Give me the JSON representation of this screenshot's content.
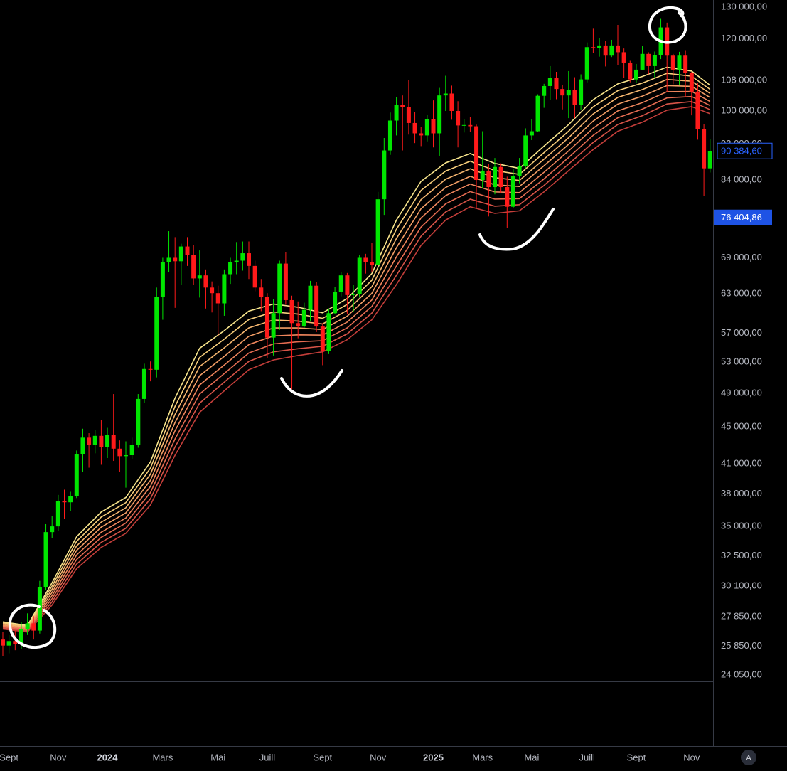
{
  "chart_data": {
    "type": "candlestick",
    "categories": [
      null,
      "Sept",
      null,
      null,
      null,
      null,
      null,
      null,
      null,
      "Nov",
      null,
      null,
      null,
      null,
      null,
      null,
      null,
      "2024",
      null,
      null,
      null,
      null,
      null,
      null,
      null,
      null,
      "Mars",
      null,
      null,
      null,
      null,
      null,
      null,
      null,
      null,
      "Mai",
      null,
      null,
      null,
      null,
      null,
      null,
      null,
      "Juill",
      null,
      null,
      null,
      null,
      null,
      null,
      null,
      null,
      "Sept",
      null,
      null,
      null,
      null,
      null,
      null,
      null,
      null,
      "Nov",
      null,
      null,
      null,
      null,
      null,
      null,
      null,
      null,
      "2025",
      null,
      null,
      null,
      null,
      null,
      null,
      null,
      "Mars",
      null,
      null,
      null,
      null,
      null,
      null,
      null,
      "Mai",
      null,
      null,
      null,
      null,
      null,
      null,
      null,
      null,
      "Juill",
      null,
      null,
      null,
      null,
      null,
      null,
      null,
      "Sept",
      null,
      null,
      null,
      null,
      null,
      null,
      null,
      null,
      "Nov",
      null,
      null,
      null
    ],
    "open": [
      26300,
      25900,
      26200,
      26000,
      27000,
      27400,
      26900,
      30000,
      34500,
      35000,
      37300,
      37200,
      37800,
      42000,
      43800,
      43000,
      44000,
      42800,
      44100,
      42600,
      41800,
      41900,
      43000,
      48300,
      52100,
      52000,
      62500,
      68300,
      69000,
      68400,
      71000,
      69500,
      65500,
      66000,
      64000,
      63100,
      61500,
      66200,
      68200,
      68500,
      69800,
      67600,
      64000,
      62500,
      56400,
      60000,
      68000,
      62000,
      58500,
      58000,
      60500,
      64300,
      58000,
      54500,
      60000,
      63300,
      66000,
      62800,
      63000,
      69000,
      68300,
      67800,
      80000,
      90500,
      97600,
      101500,
      101000,
      97000,
      94500,
      94000,
      98000,
      94500,
      104000,
      104500,
      100000,
      96400,
      96500,
      96200,
      84000,
      86000,
      82500,
      86800,
      82500,
      78500,
      84900,
      87000,
      94000,
      95000,
      103900,
      106500,
      108700,
      105700,
      104000,
      105500,
      101500,
      108300,
      117500,
      117300,
      118000,
      115000,
      118000,
      116000,
      113000,
      108300,
      111000,
      115500,
      112000,
      115200,
      123500,
      115000,
      111000,
      115000,
      110000,
      105000,
      95500,
      86500
    ],
    "high": [
      26800,
      26600,
      26900,
      27500,
      28100,
      27900,
      30500,
      35200,
      35900,
      37900,
      38400,
      38200,
      42400,
      44800,
      44300,
      44700,
      45800,
      44900,
      48900,
      43500,
      43400,
      43800,
      48900,
      52800,
      53100,
      64000,
      69000,
      73800,
      72700,
      71500,
      72700,
      71300,
      70300,
      67000,
      65000,
      64300,
      67000,
      69000,
      71800,
      71900,
      71900,
      68500,
      65400,
      63100,
      62200,
      68500,
      70000,
      62700,
      61800,
      61600,
      65100,
      64900,
      58500,
      60700,
      64100,
      66500,
      66400,
      64400,
      69500,
      69700,
      71600,
      81500,
      93400,
      99600,
      103600,
      104000,
      108200,
      99800,
      96100,
      99000,
      102700,
      106000,
      109300,
      106600,
      102500,
      98000,
      98500,
      96600,
      95000,
      87500,
      88800,
      87600,
      84700,
      86400,
      88800,
      95700,
      97900,
      104300,
      107100,
      112000,
      110400,
      106800,
      110600,
      108900,
      109700,
      118900,
      123100,
      120200,
      119300,
      119700,
      124300,
      117100,
      113500,
      112600,
      117900,
      116000,
      116200,
      126200,
      125000,
      115500,
      116100,
      116400,
      110400,
      107400,
      96800,
      93100
    ],
    "low": [
      25200,
      25400,
      25600,
      25700,
      26600,
      26300,
      26700,
      29800,
      34000,
      34600,
      35700,
      36400,
      37600,
      40200,
      40600,
      42100,
      40900,
      41600,
      41300,
      40200,
      38600,
      41500,
      42700,
      47800,
      50500,
      51000,
      59000,
      66600,
      60800,
      64500,
      67600,
      64500,
      62400,
      60700,
      60100,
      56600,
      59600,
      64600,
      66200,
      66800,
      65400,
      63400,
      60300,
      53500,
      53900,
      57500,
      61300,
      49500,
      56300,
      57800,
      58800,
      57200,
      52600,
      54100,
      59800,
      62600,
      59900,
      60200,
      62400,
      66300,
      66600,
      66800,
      76900,
      89500,
      94000,
      90500,
      94200,
      92200,
      91500,
      92600,
      91200,
      89300,
      100000,
      97800,
      91200,
      94700,
      94900,
      78200,
      82300,
      76600,
      81000,
      81200,
      74400,
      78300,
      83300,
      86500,
      92900,
      94800,
      100800,
      102800,
      103000,
      100400,
      98200,
      98200,
      100300,
      107500,
      115700,
      114700,
      111900,
      114600,
      112400,
      108800,
      107500,
      107300,
      110800,
      109700,
      108600,
      114000,
      104800,
      107000,
      106700,
      103500,
      98900,
      93000,
      80600,
      85600
    ],
    "close": [
      25900,
      26200,
      26000,
      27000,
      27400,
      26900,
      30000,
      34500,
      35000,
      37300,
      37200,
      37800,
      42000,
      43800,
      43000,
      44000,
      42800,
      44100,
      42600,
      41800,
      41900,
      43000,
      48300,
      52100,
      52000,
      62500,
      68300,
      69000,
      68400,
      71000,
      69500,
      65500,
      66000,
      64000,
      63100,
      61500,
      66200,
      68200,
      68500,
      69800,
      67600,
      64000,
      62500,
      56400,
      60000,
      68000,
      62000,
      58500,
      58000,
      60500,
      64300,
      58000,
      54500,
      60000,
      63300,
      66000,
      62800,
      63000,
      69000,
      68300,
      67800,
      80000,
      90500,
      97600,
      101500,
      101000,
      97000,
      94500,
      94000,
      98000,
      94500,
      104000,
      104500,
      100000,
      96400,
      96500,
      96200,
      84000,
      86000,
      82500,
      86800,
      82500,
      78500,
      84900,
      87000,
      94000,
      95000,
      103900,
      106500,
      108700,
      105700,
      104000,
      105500,
      101500,
      108300,
      117500,
      117300,
      118000,
      115000,
      118000,
      116000,
      113000,
      108300,
      111000,
      115500,
      112000,
      115200,
      123500,
      115000,
      111000,
      115000,
      110000,
      105000,
      95500,
      86500,
      90384.6
    ],
    "up_color": "#00e600",
    "down_color": "#ff1a1a",
    "ribbon": {
      "x": [
        0,
        4,
        8,
        12,
        16,
        20,
        24,
        28,
        32,
        36,
        40,
        44,
        48,
        52,
        56,
        60,
        64,
        68,
        72,
        76,
        80,
        84,
        88,
        92,
        96,
        100,
        104,
        108,
        112,
        115
      ],
      "series": [
        {
          "color": "#f8e58c",
          "values": [
            27500,
            27250,
            30350,
            34100,
            36300,
            37650,
            41200,
            48400,
            54900,
            57400,
            60300,
            61400,
            60900,
            60050,
            62250,
            66300,
            75900,
            83700,
            87700,
            89800,
            87600,
            86500,
            91500,
            96600,
            102900,
            107100,
            109100,
            111700,
            110600,
            106700
          ]
        },
        {
          "color": "#f8cf7c",
          "values": [
            27430,
            27190,
            30110,
            33710,
            35840,
            37170,
            40560,
            47410,
            53650,
            56170,
            59040,
            60170,
            59850,
            59210,
            61330,
            65200,
            74160,
            81790,
            85910,
            88090,
            86030,
            85190,
            90000,
            95010,
            101060,
            105280,
            107320,
            109980,
            109190,
            105610
          ]
        },
        {
          "color": "#f6b770",
          "values": [
            27360,
            27120,
            29870,
            33320,
            35380,
            36690,
            39940,
            46450,
            52420,
            54960,
            57800,
            58970,
            58810,
            58380,
            60430,
            64130,
            72450,
            79920,
            84150,
            86410,
            84490,
            83890,
            88520,
            93440,
            99260,
            103490,
            105560,
            108290,
            107800,
            104530
          ]
        },
        {
          "color": "#f39e66",
          "values": [
            27280,
            27060,
            29630,
            32940,
            34930,
            36220,
            39320,
            45500,
            51220,
            53780,
            56590,
            57790,
            57790,
            57560,
            59540,
            63070,
            70790,
            78100,
            82430,
            84770,
            82980,
            82620,
            87070,
            91900,
            97480,
            101740,
            103830,
            106630,
            106420,
            103470
          ]
        },
        {
          "color": "#ee855c",
          "values": [
            27210,
            26990,
            29390,
            32570,
            34490,
            35750,
            38720,
            44570,
            50040,
            52620,
            55410,
            56640,
            56790,
            56750,
            58660,
            62030,
            69160,
            76310,
            80740,
            83150,
            81500,
            81360,
            85640,
            90390,
            95740,
            100010,
            102130,
            104990,
            105060,
            102410
          ]
        },
        {
          "color": "#e56c52",
          "values": [
            27140,
            26930,
            29160,
            32190,
            34050,
            35300,
            38120,
            43660,
            48900,
            51490,
            54250,
            55510,
            55800,
            55960,
            57800,
            61010,
            67570,
            74570,
            79090,
            81570,
            80040,
            80130,
            84230,
            88900,
            94030,
            98310,
            100460,
            103370,
            103720,
            101370
          ]
        },
        {
          "color": "#d75448",
          "values": [
            27070,
            26860,
            28930,
            31820,
            33620,
            34840,
            37530,
            42780,
            47780,
            50390,
            53110,
            54400,
            54840,
            55170,
            56940,
            60000,
            66020,
            72870,
            77480,
            80020,
            78610,
            78910,
            82850,
            87440,
            92350,
            96640,
            98820,
            101780,
            102400,
            100330
          ]
        },
        {
          "color": "#c33e3a",
          "values": [
            27000,
            26800,
            28700,
            31460,
            33200,
            34400,
            36950,
            41900,
            46700,
            49300,
            52000,
            53300,
            53900,
            54400,
            56100,
            59000,
            64500,
            71200,
            75900,
            78500,
            77200,
            77700,
            81500,
            86000,
            90700,
            95000,
            97200,
            100200,
            101100,
            99300
          ]
        }
      ]
    },
    "log_scale": true,
    "grid": false,
    "ylim": [
      23660,
      132360
    ],
    "yticks": [
      {
        "value": 130000,
        "label": "130 000,00"
      },
      {
        "value": 120000,
        "label": "120 000,00"
      },
      {
        "value": 108000,
        "label": "108 000,00"
      },
      {
        "value": 100000,
        "label": "100 000,00"
      },
      {
        "value": 92000,
        "label": "92 000,00"
      },
      {
        "value": 84000,
        "label": "84 000,00"
      },
      {
        "value": 69000,
        "label": "69 000,00"
      },
      {
        "value": 63000,
        "label": "63 000,00"
      },
      {
        "value": 57000,
        "label": "57 000,00"
      },
      {
        "value": 53000,
        "label": "53 000,00"
      },
      {
        "value": 49000,
        "label": "49 000,00"
      },
      {
        "value": 45000,
        "label": "45 000,00"
      },
      {
        "value": 41000,
        "label": "41 000,00"
      },
      {
        "value": 38000,
        "label": "38 000,00"
      },
      {
        "value": 35000,
        "label": "35 000,00"
      },
      {
        "value": 32500,
        "label": "32 500,00"
      },
      {
        "value": 30100,
        "label": "30 100,00"
      },
      {
        "value": 27850,
        "label": "27 850,00"
      },
      {
        "value": 25850,
        "label": "25 850,00"
      },
      {
        "value": 24050,
        "label": "24 050,00"
      }
    ],
    "price_labels": [
      {
        "value": 90384.6,
        "label": "90 384,60",
        "color": "#2962ff",
        "filled": false
      },
      {
        "value": 76404.86,
        "label": "76 404,86",
        "color": "#1e53e5",
        "filled": true
      }
    ]
  },
  "ui": {
    "auto_scale_button": "A"
  }
}
